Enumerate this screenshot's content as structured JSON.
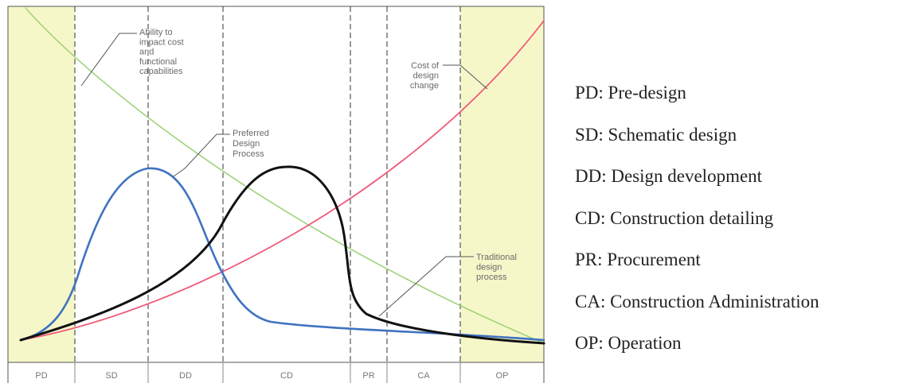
{
  "chart_data": {
    "type": "line",
    "phases": [
      "PD",
      "SD",
      "DD",
      "CD",
      "PR",
      "CA",
      "OP"
    ],
    "shaded_phases": [
      "PD",
      "OP"
    ],
    "phase_boundaries": [
      "PD|SD",
      "SD|DD",
      "DD|CD",
      "CD|PR",
      "PR|CA",
      "CA|OP"
    ],
    "series": [
      {
        "name": "Ability to impact cost and functional capabilities",
        "color": "#9fd27a",
        "trend": "decreasing"
      },
      {
        "name": "Cost of design change",
        "color": "#ef5a78",
        "trend": "increasing"
      },
      {
        "name": "Preferred Design Process",
        "color": "#3f73c0",
        "peak_phase": "SD|DD"
      },
      {
        "name": "Traditional design process",
        "color": "#111111",
        "peak_phase": "CD"
      }
    ],
    "annotations": [
      {
        "target": "Ability to impact cost and functional capabilities",
        "lines": [
          "Ability to",
          "impact cost",
          "and",
          "functional",
          "capabilities"
        ]
      },
      {
        "target": "Preferred Design Process",
        "lines": [
          "Preferred",
          "Design",
          "Process"
        ]
      },
      {
        "target": "Cost of design change",
        "lines": [
          "Cost of",
          "design",
          "change"
        ]
      },
      {
        "target": "Traditional design process",
        "lines": [
          "Traditional",
          "design",
          "process"
        ]
      }
    ],
    "title": "",
    "xlabel": "",
    "ylabel": "",
    "axis_ticks": false,
    "grid": false
  },
  "legend": [
    "PD: Pre-design",
    "SD: Schematic design",
    "DD: Design development",
    "CD: Construction detailing",
    "PR: Procurement",
    "CA: Construction Administration",
    "OP: Operation"
  ]
}
